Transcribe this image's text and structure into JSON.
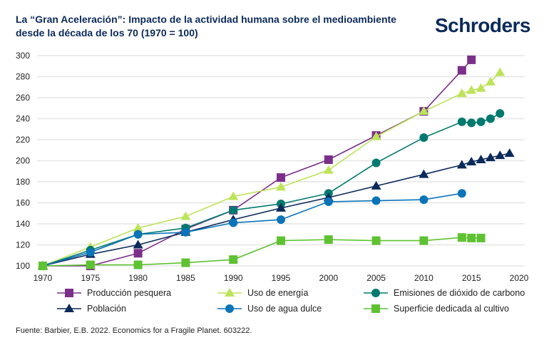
{
  "title_line1": "La “Gran Aceleración”: Impacto de la actividad humana sobre el medioambiente",
  "title_line2": "desde la década de los 70 (1970 = 100)",
  "logo": "Schroders",
  "source": "Fuente: Barbier, E.B. 2022. Economics for a Fragile Planet. 603222.",
  "chart_data": {
    "type": "line",
    "xlim": [
      1970,
      2020
    ],
    "ylim": [
      100,
      300
    ],
    "xticks": [
      1970,
      1975,
      1980,
      1985,
      1990,
      1995,
      2000,
      2005,
      2010,
      2015,
      2020
    ],
    "yticks": [
      100,
      120,
      140,
      160,
      180,
      200,
      220,
      240,
      260,
      280,
      300
    ],
    "grid": true,
    "legend": "bottom",
    "series": [
      {
        "name": "Producción pesquera",
        "color": "#7b2f8a",
        "marker": "square",
        "x": [
          1970,
          1975,
          1980,
          1985,
          1990,
          1995,
          2000,
          2005,
          2010,
          2014,
          2015
        ],
        "y": [
          100,
          100,
          112,
          135,
          153,
          184,
          201,
          224,
          247,
          286,
          296
        ]
      },
      {
        "name": "Uso de energía",
        "color": "#bde35a",
        "marker": "triangle",
        "x": [
          1970,
          1975,
          1980,
          1985,
          1990,
          1995,
          2000,
          2005,
          2010,
          2014,
          2015,
          2016,
          2017,
          2018
        ],
        "y": [
          100,
          118,
          136,
          147,
          166,
          175,
          191,
          223,
          247,
          264,
          267,
          269,
          275,
          284
        ]
      },
      {
        "name": "Emisiones de dióxido de carbono",
        "color": "#007a6e",
        "marker": "circle",
        "x": [
          1970,
          1975,
          1980,
          1985,
          1990,
          1995,
          2000,
          2005,
          2010,
          2014,
          2015,
          2016,
          2017,
          2018
        ],
        "y": [
          100,
          115,
          130,
          136,
          153,
          159,
          169,
          198,
          222,
          237,
          236,
          237,
          240,
          245
        ]
      },
      {
        "name": "Población",
        "color": "#0b2a5a",
        "marker": "triangle",
        "x": [
          1970,
          1975,
          1980,
          1985,
          1990,
          1995,
          2000,
          2005,
          2010,
          2014,
          2015,
          2016,
          2017,
          2018,
          2019
        ],
        "y": [
          100,
          111,
          120,
          132,
          144,
          155,
          165,
          176,
          187,
          196,
          199,
          201,
          203,
          205,
          207
        ]
      },
      {
        "name": "Uso de agua dulce",
        "color": "#0a74b8",
        "marker": "circle",
        "x": [
          1970,
          1975,
          1980,
          1985,
          1990,
          1995,
          2000,
          2005,
          2010,
          2014
        ],
        "y": [
          100,
          113,
          130,
          132,
          141,
          144,
          161,
          162,
          163,
          169
        ]
      },
      {
        "name": "Superficie dedicada al cultivo",
        "color": "#5ec232",
        "marker": "square",
        "x": [
          1970,
          1975,
          1980,
          1985,
          1990,
          1995,
          2000,
          2005,
          2010,
          2014,
          2015,
          2016
        ],
        "y": [
          100,
          101,
          101,
          103,
          106,
          124,
          125,
          124,
          124,
          127,
          126.5,
          126.5
        ]
      }
    ]
  }
}
